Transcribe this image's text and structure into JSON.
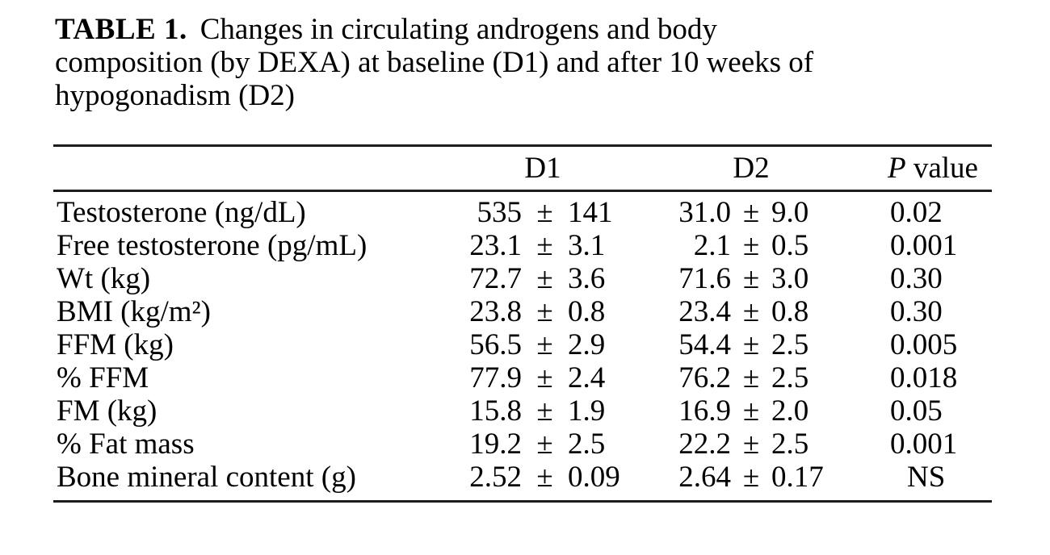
{
  "caption": {
    "label": "TABLE 1.",
    "lines": [
      "Changes in circulating androgens and body",
      "composition (by DEXA) at baseline (D1) and after 10 weeks of",
      "hypogonadism (D2)"
    ]
  },
  "columns": {
    "d1": "D1",
    "d2": "D2",
    "p_italic": "P",
    "p_rest": " value"
  },
  "pm_sign": "±",
  "rows": [
    {
      "label": "Testosterone (ng/dL)",
      "d1": "535",
      "d1_err": "141",
      "d2": "31.0",
      "d2_err": "9.0",
      "p": "0.02"
    },
    {
      "label": "Free testosterone (pg/mL)",
      "d1": "23.1",
      "d1_err": "3.1",
      "d2": "2.1",
      "d2_err": "0.5",
      "p": "0.001"
    },
    {
      "label": "Wt (kg)",
      "d1": "72.7",
      "d1_err": "3.6",
      "d2": "71.6",
      "d2_err": "3.0",
      "p": "0.30"
    },
    {
      "label": "BMI (kg/m²)",
      "d1": "23.8",
      "d1_err": "0.8",
      "d2": "23.4",
      "d2_err": "0.8",
      "p": "0.30"
    },
    {
      "label": "FFM (kg)",
      "d1": "56.5",
      "d1_err": "2.9",
      "d2": "54.4",
      "d2_err": "2.5",
      "p": "0.005"
    },
    {
      "label": "% FFM",
      "d1": "77.9",
      "d1_err": "2.4",
      "d2": "76.2",
      "d2_err": "2.5",
      "p": "0.018"
    },
    {
      "label": "FM (kg)",
      "d1": "15.8",
      "d1_err": "1.9",
      "d2": "16.9",
      "d2_err": "2.0",
      "p": "0.05"
    },
    {
      "label": "% Fat mass",
      "d1": "19.2",
      "d1_err": "2.5",
      "d2": "22.2",
      "d2_err": "2.5",
      "p": "0.001"
    },
    {
      "label": "Bone mineral content (g)",
      "d1": "2.52",
      "d1_err": "0.09",
      "d2": "2.64",
      "d2_err": "0.17",
      "p": "NS"
    }
  ],
  "colors": {
    "text": "#000000",
    "background": "#ffffff",
    "rule": "#1c1c1c"
  }
}
